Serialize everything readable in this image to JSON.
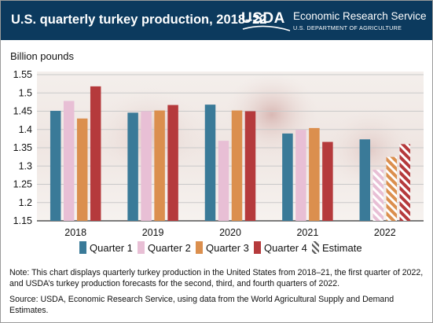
{
  "header": {
    "title": "U.S. quarterly turkey production, 2018–22",
    "logo_text": "USDA",
    "agency_name": "Economic Research Service",
    "department": "U.S. DEPARTMENT OF AGRICULTURE"
  },
  "chart_data": {
    "type": "bar",
    "title": "U.S. quarterly turkey production, 2018–22",
    "ylabel": "Billion pounds",
    "xlabel": "",
    "categories": [
      "2018",
      "2019",
      "2020",
      "2021",
      "2022"
    ],
    "ylim": [
      1.15,
      1.55
    ],
    "yticks": [
      "1.15",
      "1.2",
      "1.25",
      "1.3",
      "1.35",
      "1.4",
      "1.45",
      "1.5",
      "1.55"
    ],
    "grid": "horizontal",
    "legend_position": "bottom",
    "series": [
      {
        "name": "Quarter 1",
        "color": "#3a7a98",
        "values": [
          1.451,
          1.446,
          1.468,
          1.389,
          1.373
        ],
        "estimate": [
          false,
          false,
          false,
          false,
          false
        ]
      },
      {
        "name": "Quarter 2",
        "color": "#e8bfd5",
        "values": [
          1.478,
          1.45,
          1.369,
          1.399,
          1.29
        ],
        "estimate": [
          false,
          false,
          false,
          false,
          true
        ]
      },
      {
        "name": "Quarter 3",
        "color": "#db8f4e",
        "values": [
          1.43,
          1.452,
          1.452,
          1.404,
          1.325
        ],
        "estimate": [
          false,
          false,
          false,
          false,
          true
        ]
      },
      {
        "name": "Quarter 4",
        "color": "#b53a3c",
        "values": [
          1.518,
          1.467,
          1.45,
          1.366,
          1.36
        ],
        "estimate": [
          false,
          false,
          false,
          false,
          true
        ]
      }
    ],
    "legend": [
      {
        "label": "Quarter 1",
        "color": "#3a7a98",
        "hatched": false
      },
      {
        "label": "Quarter 2",
        "color": "#e8bfd5",
        "hatched": false
      },
      {
        "label": "Quarter 3",
        "color": "#db8f4e",
        "hatched": false
      },
      {
        "label": "Quarter 4",
        "color": "#b53a3c",
        "hatched": false
      },
      {
        "label": "Estimate",
        "color": "#555555",
        "hatched": true
      }
    ]
  },
  "footer": {
    "note": "Note: This chart displays quarterly turkey production in the United States from 2018–21, the first quarter of 2022, and USDA’s turkey production forecasts for the second, third, and fourth quarters of 2022.",
    "source": "Source: USDA, Economic Research Service, using data from the World Agricultural Supply and Demand Estimates."
  },
  "colors": {
    "header_bg": "#0c3a5e",
    "header_text": "#ffffff",
    "grid": "#c9c9c9"
  }
}
